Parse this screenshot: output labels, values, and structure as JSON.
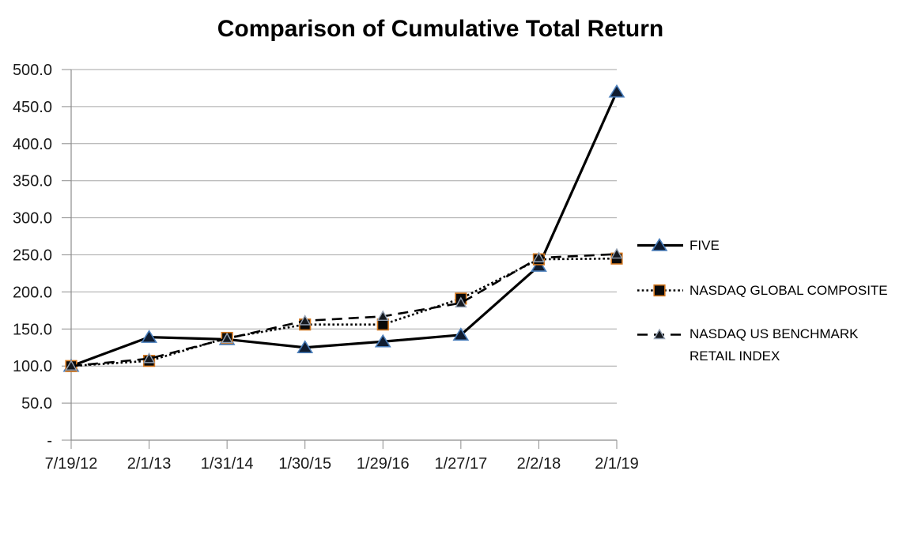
{
  "chart_data": {
    "type": "line",
    "title": "Comparison of Cumulative Total Return",
    "categories": [
      "7/19/12",
      "2/1/13",
      "1/31/14",
      "1/30/15",
      "1/29/16",
      "1/27/17",
      "2/2/18",
      "2/1/19"
    ],
    "series": [
      {
        "name": "FIVE",
        "values": [
          100.0,
          139.0,
          136.0,
          125.0,
          133.0,
          142.0,
          235.0,
          470.0
        ],
        "line_style": "solid",
        "marker": "triangle",
        "line_color": "#000000",
        "marker_fill": "#101c30",
        "marker_stroke": "#4a7ebb"
      },
      {
        "name": "NASDAQ GLOBAL COMPOSITE",
        "values": [
          100.0,
          107.0,
          138.0,
          156.0,
          156.0,
          191.0,
          244.0,
          245.0
        ],
        "line_style": "dotted",
        "marker": "square",
        "line_color": "#000000",
        "marker_fill": "#0a0a0a",
        "marker_stroke": "#d2761e"
      },
      {
        "name": "NASDAQ US BENCHMARK RETAIL INDEX",
        "values": [
          100.0,
          110.0,
          137.0,
          161.0,
          167.0,
          185.0,
          246.0,
          251.0
        ],
        "line_style": "dashed",
        "marker": "triangle-small",
        "line_color": "#000000",
        "marker_fill": "#15191f",
        "marker_stroke": "#97a3b4"
      }
    ],
    "ylim": [
      0,
      500
    ],
    "ytick_step": 50,
    "ytick_labels": [
      "-",
      "50.0",
      "100.0",
      "150.0",
      "200.0",
      "250.0",
      "300.0",
      "350.0",
      "400.0",
      "450.0",
      "500.0"
    ],
    "grid": true,
    "legend_position": "right",
    "axis_color": "#8c8c8c",
    "grid_color": "#a6a6a6",
    "text_color": "#1a1a1a",
    "background": "#ffffff"
  },
  "legend": {
    "items": [
      {
        "label_lines": [
          "FIVE"
        ]
      },
      {
        "label_lines": [
          "NASDAQ GLOBAL COMPOSITE"
        ]
      },
      {
        "label_lines": [
          "NASDAQ US BENCHMARK",
          "RETAIL INDEX"
        ]
      }
    ]
  }
}
